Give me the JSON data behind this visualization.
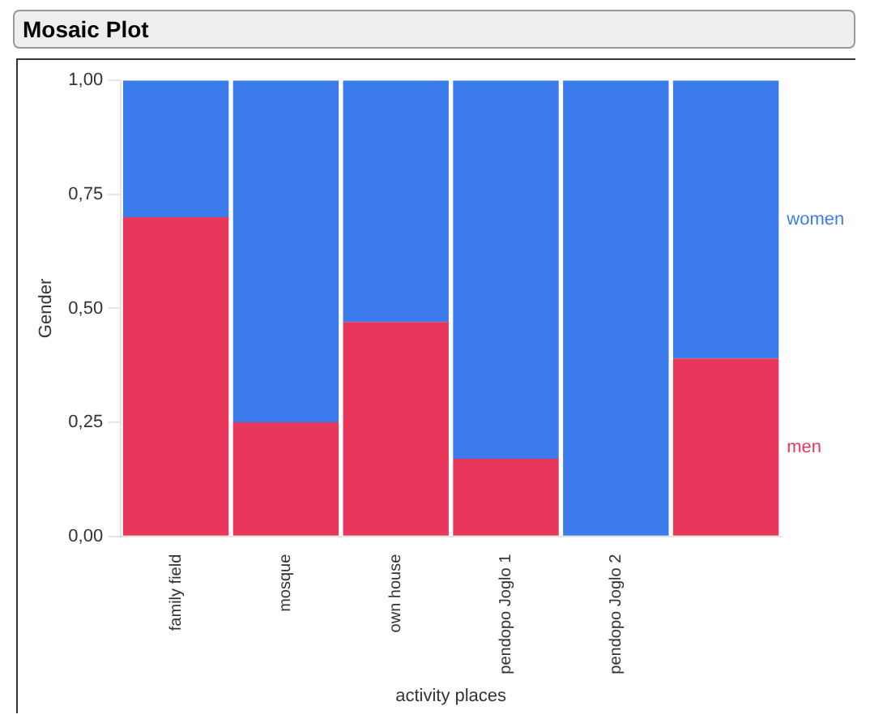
{
  "chart_data": {
    "type": "bar",
    "title": "Mosaic Plot",
    "xlabel": "activity places",
    "ylabel": "Gender",
    "stacked": true,
    "categories": [
      "family field",
      "mosque",
      "own house",
      "pendopo Joglo 1",
      "pendopo Joglo 2",
      null
    ],
    "series": [
      {
        "name": "men",
        "color": "#e8375a",
        "values": [
          0.7,
          0.25,
          0.47,
          0.17,
          0,
          0.39
        ]
      },
      {
        "name": "women",
        "color": "#3b7beb",
        "values": [
          0.3,
          0.75,
          0.53,
          0.83,
          1,
          0.61
        ]
      }
    ],
    "ylim": [
      0,
      1
    ],
    "yticks": [
      {
        "value": 0,
        "label": "0,00"
      },
      {
        "value": 0.25,
        "label": "0,25"
      },
      {
        "value": 0.5,
        "label": "0,50"
      },
      {
        "value": 0.75,
        "label": "0,75"
      },
      {
        "value": 1,
        "label": "1,00"
      }
    ],
    "grid": false,
    "legend": "right"
  }
}
